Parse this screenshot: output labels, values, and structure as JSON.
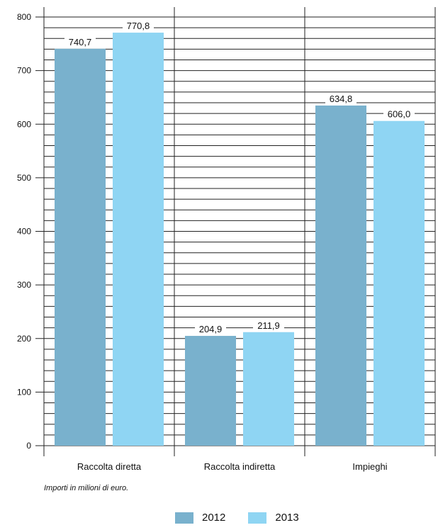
{
  "chart_data": {
    "type": "bar",
    "categories": [
      "Raccolta diretta",
      "Raccolta indiretta",
      "Impieghi"
    ],
    "series": [
      {
        "name": "2012",
        "values": [
          740.7,
          204.9,
          634.8
        ],
        "labels": [
          "740,7",
          "204,9",
          "634,8"
        ],
        "color": "#79b1cd"
      },
      {
        "name": "2013",
        "values": [
          770.8,
          211.9,
          606.0
        ],
        "labels": [
          "770,8",
          "211,9",
          "606,0"
        ],
        "color": "#8fd5f3"
      }
    ],
    "yticks": [
      "0",
      "100",
      "200",
      "300",
      "400",
      "500",
      "600",
      "700",
      "800"
    ],
    "ylim": [
      0,
      800
    ],
    "grid": true,
    "legend_position": "bottom-center"
  },
  "note": "Importi in milioni di euro."
}
